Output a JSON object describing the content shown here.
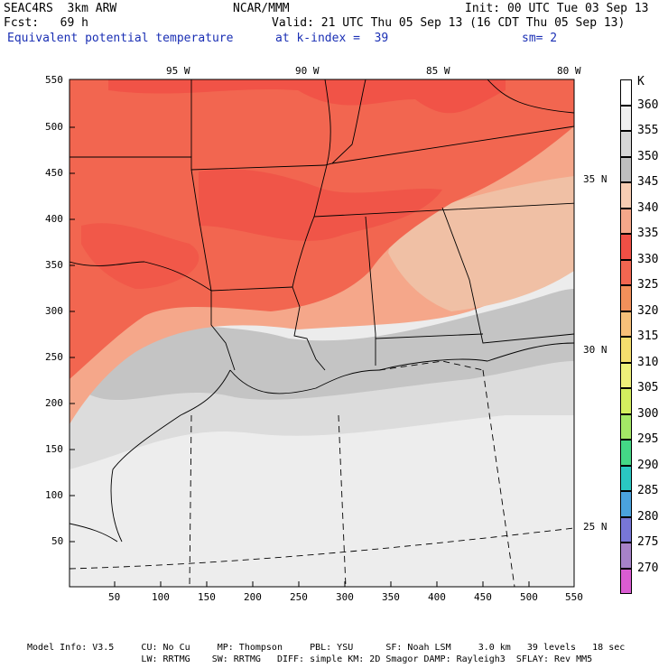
{
  "header": {
    "run": "SEAC4RS  3km ARW",
    "org": "NCAR/MMM",
    "init": "Init: 00 UTC Tue 03 Sep 13",
    "fcst": "Fcst:   69 h",
    "valid": "Valid: 21 UTC Thu 05 Sep 13 (16 CDT Thu 05 Sep 13)",
    "field": "Equivalent potential temperature",
    "kindex": "at k-index =  39",
    "smooth": "sm= 2"
  },
  "map": {
    "lon_labels": [
      "95 W",
      "90 W",
      "85 W",
      "80 W"
    ],
    "lat_labels": [
      "35 N",
      "30 N",
      "25 N"
    ],
    "x_ticks": [
      "50",
      "100",
      "150",
      "200",
      "250",
      "300",
      "350",
      "400",
      "450",
      "500",
      "550"
    ],
    "y_ticks": [
      "550",
      "500",
      "450",
      "400",
      "350",
      "300",
      "250",
      "200",
      "150",
      "100",
      "50"
    ]
  },
  "legend": {
    "unit": "K",
    "levels": [
      {
        "value": "360",
        "color": "#ffffff"
      },
      {
        "value": "355",
        "color": "#f0f0f0"
      },
      {
        "value": "350",
        "color": "#d6d6d6"
      },
      {
        "value": "345",
        "color": "#bfbfbf"
      },
      {
        "value": "340",
        "color": "#f7cdb3"
      },
      {
        "value": "335",
        "color": "#f5a78a"
      },
      {
        "value": "330",
        "color": "#f04f45"
      },
      {
        "value": "325",
        "color": "#f26650"
      },
      {
        "value": "320",
        "color": "#f2905a"
      },
      {
        "value": "315",
        "color": "#f7c079"
      },
      {
        "value": "310",
        "color": "#f5df6e"
      },
      {
        "value": "305",
        "color": "#eef07a"
      },
      {
        "value": "300",
        "color": "#d4ef5f"
      },
      {
        "value": "295",
        "color": "#a4e866"
      },
      {
        "value": "290",
        "color": "#44d886"
      },
      {
        "value": "285",
        "color": "#2ac7c2"
      },
      {
        "value": "280",
        "color": "#4aa2de"
      },
      {
        "value": "275",
        "color": "#7876d6"
      },
      {
        "value": "270",
        "color": "#a782c8"
      },
      {
        "value": "",
        "color": "#da5cd2"
      }
    ]
  },
  "footer": {
    "line1": "Model Info: V3.5     CU: No Cu     MP: Thompson     PBL: YSU      SF: Noah LSM     3.0 km   39 levels   18 sec",
    "line2": "                     LW: RRTMG    SW: RRTMG   DIFF: simple KM: 2D Smagor DAMP: Rayleigh3  SFLAY: Rev MM5"
  }
}
